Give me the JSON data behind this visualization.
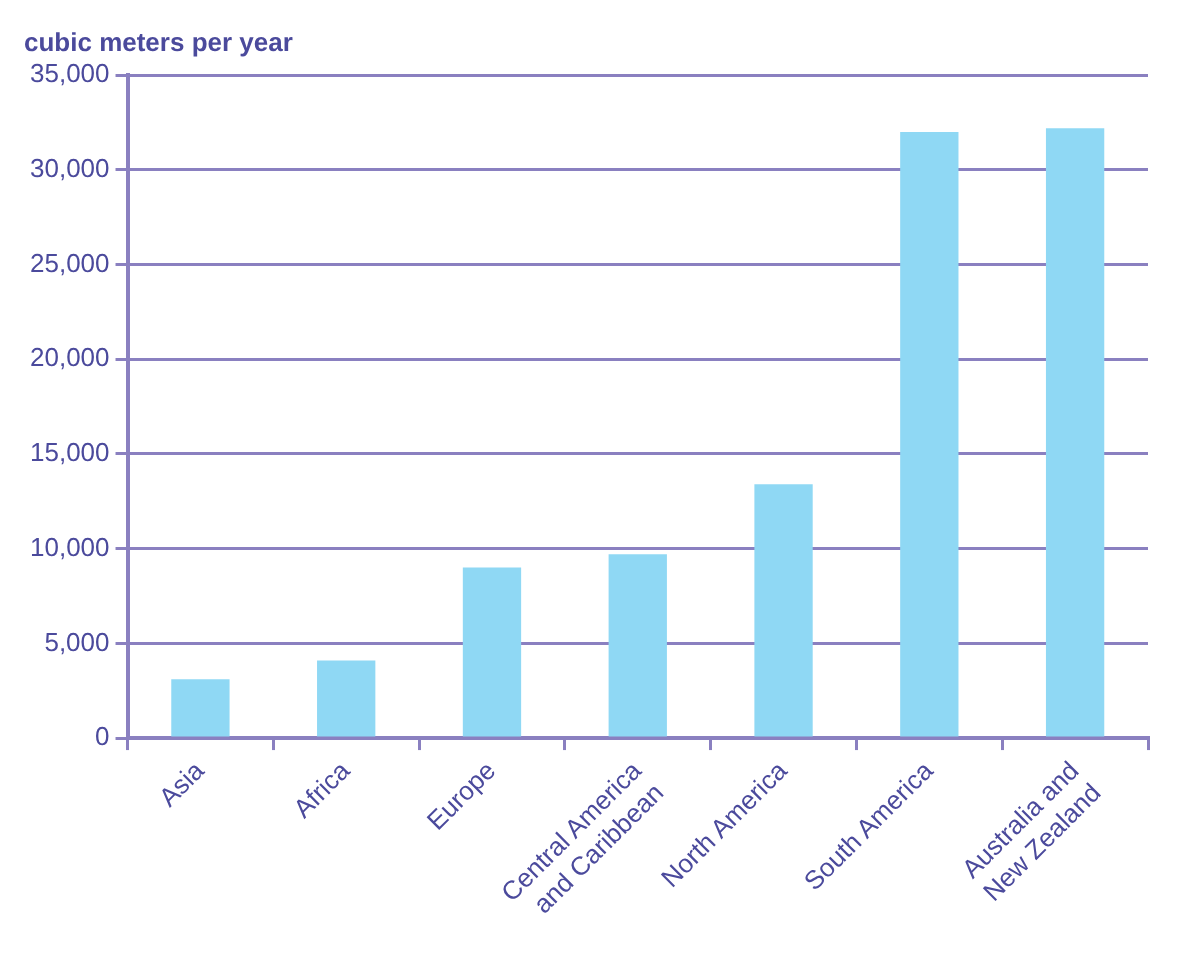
{
  "chart_data": {
    "type": "bar",
    "ylabel": "cubic meters per year",
    "categories": [
      "Asia",
      "Africa",
      "Europe",
      "Central America and Caribbean",
      "North America",
      "South America",
      "Australia and New Zealand"
    ],
    "values": [
      3100,
      4100,
      9000,
      9700,
      13400,
      32000,
      32200
    ],
    "color": "#8fd8f4",
    "ylim": [
      0,
      35000
    ],
    "yticks": [
      {
        "value": 0,
        "label": "0"
      },
      {
        "value": 5000,
        "label": "5,000"
      },
      {
        "value": 10000,
        "label": "10,000"
      },
      {
        "value": 15000,
        "label": "15,000"
      },
      {
        "value": 20000,
        "label": "20,000"
      },
      {
        "value": 25000,
        "label": "25,000"
      },
      {
        "value": 30000,
        "label": "30,000"
      },
      {
        "value": 35000,
        "label": "35,000"
      }
    ],
    "grid": "y",
    "legend": false
  }
}
